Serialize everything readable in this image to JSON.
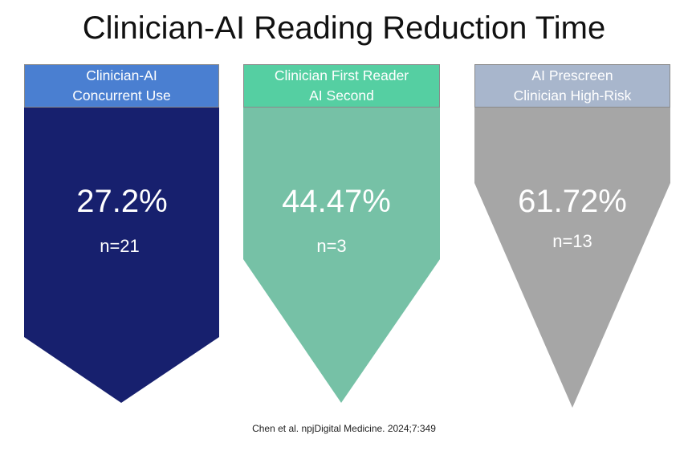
{
  "title": "Clinician-AI Reading Reduction Time",
  "panels": [
    {
      "header_line1": "Clinician-AI",
      "header_line2": "Concurrent Use",
      "percent": "27.2%",
      "n": "n=21",
      "value": 27.2,
      "header_color": "#4a7fd1",
      "body_color": "#17206e"
    },
    {
      "header_line1": "Clinician First Reader",
      "header_line2": "AI Second",
      "percent": "44.47%",
      "n": "n=3",
      "value": 44.47,
      "header_color": "#55cfa2",
      "body_color": "#76c1a6"
    },
    {
      "header_line1": "AI Prescreen",
      "header_line2": "Clinician High-Risk",
      "percent": "61.72%",
      "n": "n=13",
      "value": 61.72,
      "header_color": "#a8b6cc",
      "body_color": "#a6a6a6"
    }
  ],
  "citation": "Chen et al. npjDigital Medicine. 2024;7:349"
}
